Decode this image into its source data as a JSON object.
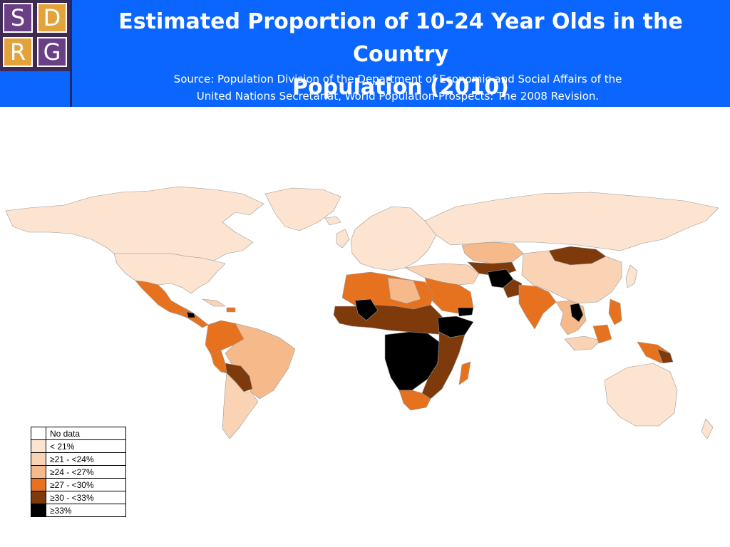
{
  "header": {
    "logo": {
      "letters": [
        "S",
        "D",
        "R",
        "G"
      ],
      "name": "SDRG-logo"
    },
    "title_line1": "Estimated Proportion of 10-24 Year Olds in the Country",
    "title_line2": "Population (2010)",
    "source_line1": "Source: Population Division of the Department of Economic and Social Affairs of the",
    "source_line2": "United Nations Secretariat, World Population Prospects: The 2008 Revision."
  },
  "legend": {
    "items": [
      {
        "label": "No data",
        "color": "#ffffff"
      },
      {
        "label": "< 21%",
        "color": "#fde4d0"
      },
      {
        "label": "≥21 - <24%",
        "color": "#fad3b5"
      },
      {
        "label": "≥24 - <27%",
        "color": "#f6ba8a"
      },
      {
        "label": "≥27 - <30%",
        "color": "#e6721f"
      },
      {
        "label": "≥30 - <33%",
        "color": "#7f3a0c"
      },
      {
        "label": "≥33%",
        "color": "#000000"
      }
    ]
  },
  "colors": {
    "header_background": "#0a66ff",
    "map_border": "#9a9a9a"
  }
}
